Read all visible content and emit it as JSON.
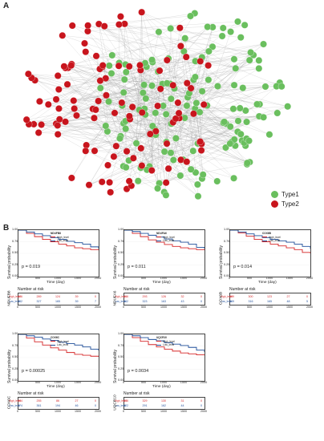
{
  "panel_a_label": "A",
  "panel_b_label": "B",
  "legend": [
    {
      "label": "Type1",
      "color": "#6abf5e"
    },
    {
      "label": "Type2",
      "color": "#c8151d"
    }
  ],
  "colors": {
    "high": "#d62728",
    "low": "#1f4e9a",
    "edge": "#8c8c8c"
  },
  "km_common": {
    "ylabel": "Survival probability",
    "xlabel": "Time (day)",
    "number_at_risk": "Number at risk",
    "high_label": "High_level",
    "low_label": "Low_level",
    "x_ticks": [
      "0",
      "500",
      "1000",
      "1500",
      "2000"
    ],
    "y_ticks": [
      "1.00",
      "0.75",
      "0.50",
      "0.25",
      "0.00"
    ]
  },
  "chart_data": [
    {
      "type": "line",
      "title": "NDUFB8",
      "strata_label": "NDUFB8",
      "p_value": "p = 0.019",
      "xlim": [
        0,
        2000
      ],
      "ylim": [
        0,
        1
      ],
      "series": [
        {
          "name": "High_level",
          "x": [
            0,
            200,
            400,
            600,
            800,
            1000,
            1200,
            1400,
            1600,
            1800,
            2000
          ],
          "y": [
            1,
            0.93,
            0.86,
            0.8,
            0.75,
            0.7,
            0.66,
            0.62,
            0.6,
            0.58,
            0.57
          ]
        },
        {
          "name": "Low_level",
          "x": [
            0,
            200,
            400,
            600,
            800,
            1000,
            1200,
            1400,
            1600,
            1800,
            2000
          ],
          "y": [
            1,
            0.96,
            0.92,
            0.88,
            0.84,
            0.8,
            0.76,
            0.73,
            0.7,
            0.64,
            0.6
          ]
        }
      ],
      "risk_table": {
        "high": [
          "426",
          "289",
          "124",
          "39",
          "0"
        ],
        "low": [
          "432",
          "327",
          "165",
          "39",
          "7"
        ]
      }
    },
    {
      "type": "line",
      "title": "NDUFA6",
      "strata_label": "NDUFA6",
      "p_value": "p = 0.011",
      "xlim": [
        0,
        2000
      ],
      "ylim": [
        0,
        1
      ],
      "series": [
        {
          "name": "High_level",
          "x": [
            0,
            200,
            400,
            600,
            800,
            1000,
            1200,
            1400,
            1600,
            1800,
            2000
          ],
          "y": [
            1,
            0.93,
            0.86,
            0.79,
            0.74,
            0.69,
            0.65,
            0.62,
            0.6,
            0.58,
            0.57
          ]
        },
        {
          "name": "Low_level",
          "x": [
            0,
            200,
            400,
            600,
            800,
            1000,
            1200,
            1400,
            1600,
            1800,
            2000
          ],
          "y": [
            1,
            0.97,
            0.93,
            0.89,
            0.85,
            0.81,
            0.77,
            0.74,
            0.7,
            0.63,
            0.6
          ]
        }
      ],
      "risk_table": {
        "high": [
          "416",
          "293",
          "126",
          "32",
          "0"
        ],
        "low": [
          "442",
          "323",
          "163",
          "43",
          "0"
        ]
      }
    },
    {
      "type": "line",
      "title": "COX6B",
      "strata_label": "COX6B",
      "p_value": "p = 0.014",
      "xlim": [
        0,
        2000
      ],
      "ylim": [
        0,
        1
      ],
      "series": [
        {
          "name": "High_level",
          "x": [
            0,
            200,
            400,
            600,
            800,
            1000,
            1200,
            1400,
            1600,
            1800,
            2000
          ],
          "y": [
            1,
            0.94,
            0.87,
            0.8,
            0.75,
            0.7,
            0.66,
            0.62,
            0.58,
            0.52,
            0.5
          ]
        },
        {
          "name": "Low_level",
          "x": [
            0,
            200,
            400,
            600,
            800,
            1000,
            1200,
            1400,
            1600,
            1800,
            2000
          ],
          "y": [
            1,
            0.96,
            0.92,
            0.88,
            0.84,
            0.8,
            0.77,
            0.74,
            0.7,
            0.65,
            0.6
          ]
        }
      ],
      "risk_table": {
        "high": [
          "409",
          "300",
          "123",
          "27",
          "0"
        ],
        "low": [
          "449",
          "316",
          "165",
          "48",
          "5"
        ]
      }
    },
    {
      "type": "line",
      "title": "COX6C",
      "strata_label": "COX6C",
      "p_value": "p = 0.00025",
      "xlim": [
        0,
        2000
      ],
      "ylim": [
        0,
        1
      ],
      "series": [
        {
          "name": "High_level",
          "x": [
            0,
            200,
            400,
            600,
            800,
            1000,
            1200,
            1400,
            1600,
            1800,
            2000
          ],
          "y": [
            1,
            0.92,
            0.84,
            0.77,
            0.71,
            0.66,
            0.61,
            0.57,
            0.55,
            0.53,
            0.52
          ]
        },
        {
          "name": "Low_level",
          "x": [
            0,
            200,
            400,
            600,
            800,
            1000,
            1200,
            1400,
            1600,
            1800,
            2000
          ],
          "y": [
            1,
            0.97,
            0.94,
            0.9,
            0.87,
            0.83,
            0.8,
            0.77,
            0.73,
            0.68,
            0.65
          ]
        }
      ],
      "risk_table": {
        "high": [
          "384",
          "255",
          "86",
          "27",
          "0"
        ],
        "low": [
          "474",
          "361",
          "194",
          "46",
          "0"
        ]
      }
    },
    {
      "type": "line",
      "title": "UQCR10",
      "strata_label": "UQCR10",
      "p_value": "p = 0.0034",
      "xlim": [
        0,
        2000
      ],
      "ylim": [
        0,
        1
      ],
      "series": [
        {
          "name": "High_level",
          "x": [
            0,
            200,
            400,
            600,
            800,
            1000,
            1200,
            1400,
            1600,
            1800,
            2000
          ],
          "y": [
            1,
            0.93,
            0.85,
            0.78,
            0.73,
            0.68,
            0.64,
            0.6,
            0.58,
            0.56,
            0.55
          ]
        },
        {
          "name": "Low_level",
          "x": [
            0,
            200,
            400,
            600,
            800,
            1000,
            1200,
            1400,
            1600,
            1800,
            2000
          ],
          "y": [
            1,
            0.97,
            0.93,
            0.89,
            0.86,
            0.82,
            0.79,
            0.76,
            0.72,
            0.66,
            0.62
          ]
        }
      ],
      "risk_table": {
        "high": [
          "436",
          "329",
          "130",
          "31",
          "0"
        ],
        "low": [
          "422",
          "291",
          "162",
          "44",
          "0"
        ]
      }
    }
  ]
}
